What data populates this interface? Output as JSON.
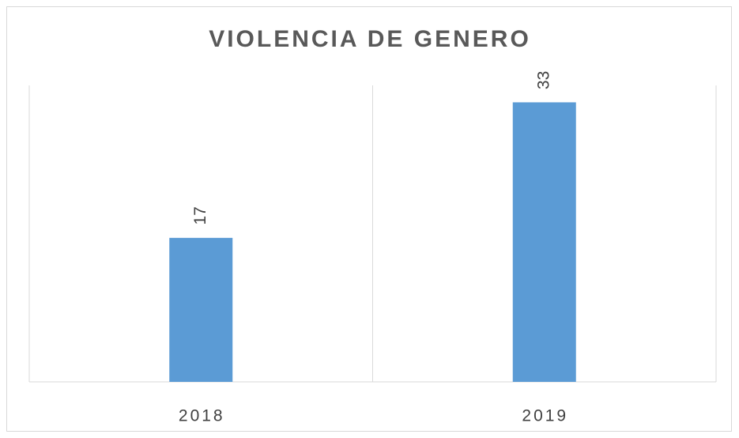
{
  "chart_data": {
    "type": "bar",
    "title": "VIOLENCIA DE GENERO",
    "categories": [
      "2018",
      "2019"
    ],
    "values": [
      17,
      33
    ],
    "color": "#5b9bd5",
    "ylim": [
      0,
      35
    ]
  }
}
